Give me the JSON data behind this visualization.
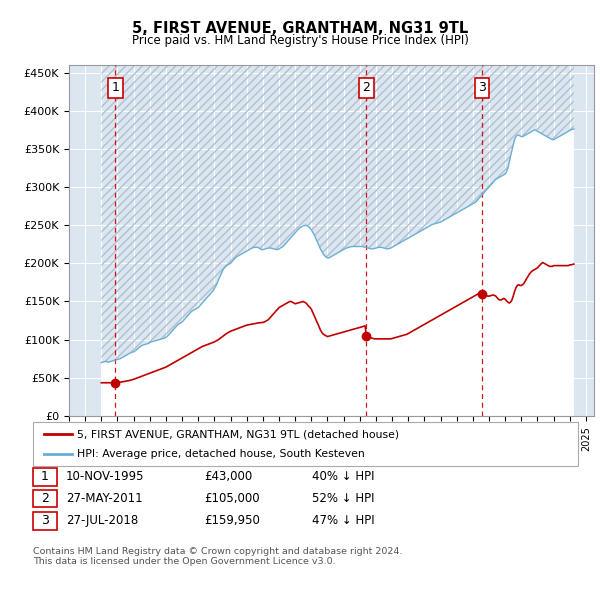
{
  "title": "5, FIRST AVENUE, GRANTHAM, NG31 9TL",
  "subtitle": "Price paid vs. HM Land Registry's House Price Index (HPI)",
  "ylim": [
    0,
    460000
  ],
  "xlim_start": 1993,
  "xlim_end": 2025.5,
  "hpi_color": "#6aaed6",
  "price_color": "#c00000",
  "dashed_line_color": "#cc0000",
  "background_color": "#dce6f1",
  "transactions": [
    {
      "num": 1,
      "date_x": 1995.86,
      "price": 43000
    },
    {
      "num": 2,
      "date_x": 2011.41,
      "price": 105000
    },
    {
      "num": 3,
      "date_x": 2018.57,
      "price": 159950
    }
  ],
  "legend_entries": [
    {
      "label": "5, FIRST AVENUE, GRANTHAM, NG31 9TL (detached house)",
      "color": "#c00000"
    },
    {
      "label": "HPI: Average price, detached house, South Kesteven",
      "color": "#6aaed6"
    }
  ],
  "table_rows": [
    {
      "num": 1,
      "date": "10-NOV-1995",
      "price": "£43,000",
      "hpi": "40% ↓ HPI"
    },
    {
      "num": 2,
      "date": "27-MAY-2011",
      "price": "£105,000",
      "hpi": "52% ↓ HPI"
    },
    {
      "num": 3,
      "date": "27-JUL-2018",
      "price": "£159,950",
      "hpi": "47% ↓ HPI"
    }
  ],
  "footnote": "Contains HM Land Registry data © Crown copyright and database right 2024.\nThis data is licensed under the Open Government Licence v3.0.",
  "hpi_data_x": [
    1995.0,
    1995.08,
    1995.17,
    1995.25,
    1995.33,
    1995.42,
    1995.5,
    1995.58,
    1995.67,
    1995.75,
    1995.83,
    1995.92,
    1996.0,
    1996.08,
    1996.17,
    1996.25,
    1996.33,
    1996.42,
    1996.5,
    1996.58,
    1996.67,
    1996.75,
    1996.83,
    1996.92,
    1997.0,
    1997.08,
    1997.17,
    1997.25,
    1997.33,
    1997.42,
    1997.5,
    1997.58,
    1997.67,
    1997.75,
    1997.83,
    1997.92,
    1998.0,
    1998.08,
    1998.17,
    1998.25,
    1998.33,
    1998.42,
    1998.5,
    1998.58,
    1998.67,
    1998.75,
    1998.83,
    1998.92,
    1999.0,
    1999.08,
    1999.17,
    1999.25,
    1999.33,
    1999.42,
    1999.5,
    1999.58,
    1999.67,
    1999.75,
    1999.83,
    1999.92,
    2000.0,
    2000.08,
    2000.17,
    2000.25,
    2000.33,
    2000.42,
    2000.5,
    2000.58,
    2000.67,
    2000.75,
    2000.83,
    2000.92,
    2001.0,
    2001.08,
    2001.17,
    2001.25,
    2001.33,
    2001.42,
    2001.5,
    2001.58,
    2001.67,
    2001.75,
    2001.83,
    2001.92,
    2002.0,
    2002.08,
    2002.17,
    2002.25,
    2002.33,
    2002.42,
    2002.5,
    2002.58,
    2002.67,
    2002.75,
    2002.83,
    2002.92,
    2003.0,
    2003.08,
    2003.17,
    2003.25,
    2003.33,
    2003.42,
    2003.5,
    2003.58,
    2003.67,
    2003.75,
    2003.83,
    2003.92,
    2004.0,
    2004.08,
    2004.17,
    2004.25,
    2004.33,
    2004.42,
    2004.5,
    2004.58,
    2004.67,
    2004.75,
    2004.83,
    2004.92,
    2005.0,
    2005.08,
    2005.17,
    2005.25,
    2005.33,
    2005.42,
    2005.5,
    2005.58,
    2005.67,
    2005.75,
    2005.83,
    2005.92,
    2006.0,
    2006.08,
    2006.17,
    2006.25,
    2006.33,
    2006.42,
    2006.5,
    2006.58,
    2006.67,
    2006.75,
    2006.83,
    2006.92,
    2007.0,
    2007.08,
    2007.17,
    2007.25,
    2007.33,
    2007.42,
    2007.5,
    2007.58,
    2007.67,
    2007.75,
    2007.83,
    2007.92,
    2008.0,
    2008.08,
    2008.17,
    2008.25,
    2008.33,
    2008.42,
    2008.5,
    2008.58,
    2008.67,
    2008.75,
    2008.83,
    2008.92,
    2009.0,
    2009.08,
    2009.17,
    2009.25,
    2009.33,
    2009.42,
    2009.5,
    2009.58,
    2009.67,
    2009.75,
    2009.83,
    2009.92,
    2010.0,
    2010.08,
    2010.17,
    2010.25,
    2010.33,
    2010.42,
    2010.5,
    2010.58,
    2010.67,
    2010.75,
    2010.83,
    2010.92,
    2011.0,
    2011.08,
    2011.17,
    2011.25,
    2011.33,
    2011.42,
    2011.5,
    2011.58,
    2011.67,
    2011.75,
    2011.83,
    2011.92,
    2012.0,
    2012.08,
    2012.17,
    2012.25,
    2012.33,
    2012.42,
    2012.5,
    2012.58,
    2012.67,
    2012.75,
    2012.83,
    2012.92,
    2013.0,
    2013.08,
    2013.17,
    2013.25,
    2013.33,
    2013.42,
    2013.5,
    2013.58,
    2013.67,
    2013.75,
    2013.83,
    2013.92,
    2014.0,
    2014.08,
    2014.17,
    2014.25,
    2014.33,
    2014.42,
    2014.5,
    2014.58,
    2014.67,
    2014.75,
    2014.83,
    2014.92,
    2015.0,
    2015.08,
    2015.17,
    2015.25,
    2015.33,
    2015.42,
    2015.5,
    2015.58,
    2015.67,
    2015.75,
    2015.83,
    2015.92,
    2016.0,
    2016.08,
    2016.17,
    2016.25,
    2016.33,
    2016.42,
    2016.5,
    2016.58,
    2016.67,
    2016.75,
    2016.83,
    2016.92,
    2017.0,
    2017.08,
    2017.17,
    2017.25,
    2017.33,
    2017.42,
    2017.5,
    2017.58,
    2017.67,
    2017.75,
    2017.83,
    2017.92,
    2018.0,
    2018.08,
    2018.17,
    2018.25,
    2018.33,
    2018.42,
    2018.5,
    2018.58,
    2018.67,
    2018.75,
    2018.83,
    2018.92,
    2019.0,
    2019.08,
    2019.17,
    2019.25,
    2019.33,
    2019.42,
    2019.5,
    2019.58,
    2019.67,
    2019.75,
    2019.83,
    2019.92,
    2020.0,
    2020.08,
    2020.17,
    2020.25,
    2020.33,
    2020.42,
    2020.5,
    2020.58,
    2020.67,
    2020.75,
    2020.83,
    2020.92,
    2021.0,
    2021.08,
    2021.17,
    2021.25,
    2021.33,
    2021.42,
    2021.5,
    2021.58,
    2021.67,
    2021.75,
    2021.83,
    2021.92,
    2022.0,
    2022.08,
    2022.17,
    2022.25,
    2022.33,
    2022.42,
    2022.5,
    2022.58,
    2022.67,
    2022.75,
    2022.83,
    2022.92,
    2023.0,
    2023.08,
    2023.17,
    2023.25,
    2023.33,
    2023.42,
    2023.5,
    2023.58,
    2023.67,
    2023.75,
    2023.83,
    2023.92,
    2024.0,
    2024.08,
    2024.17,
    2024.25
  ],
  "hpi_data_y": [
    70000,
    70500,
    71000,
    71500,
    71000,
    70500,
    71000,
    71500,
    72000,
    72500,
    73000,
    73500,
    74000,
    74500,
    75000,
    76000,
    77000,
    78000,
    79000,
    80000,
    81000,
    82000,
    83000,
    83500,
    84000,
    85000,
    86500,
    88000,
    89500,
    91000,
    92000,
    93000,
    93500,
    94000,
    94500,
    95000,
    96000,
    97000,
    97500,
    98000,
    98500,
    99000,
    99500,
    100000,
    100500,
    101000,
    101500,
    102000,
    103000,
    104500,
    106000,
    108000,
    110000,
    112000,
    114000,
    116000,
    118000,
    120000,
    121000,
    122000,
    123000,
    125000,
    127000,
    129000,
    131000,
    133000,
    135000,
    137000,
    138000,
    139000,
    140000,
    141000,
    142000,
    144000,
    146000,
    148000,
    150000,
    152000,
    154000,
    156000,
    158000,
    160000,
    162000,
    164000,
    167000,
    170000,
    174000,
    178000,
    182000,
    186000,
    190000,
    193000,
    195000,
    197000,
    198000,
    199000,
    200000,
    202000,
    204000,
    206000,
    208000,
    209000,
    210000,
    211000,
    212000,
    213000,
    214000,
    215000,
    216000,
    217000,
    218000,
    219000,
    220000,
    220500,
    221000,
    221000,
    221000,
    220000,
    219000,
    218000,
    218000,
    218500,
    219000,
    219500,
    220000,
    220000,
    220000,
    219500,
    219000,
    218500,
    218000,
    218000,
    219000,
    220000,
    221000,
    222000,
    224000,
    226000,
    228000,
    230000,
    232000,
    234000,
    236000,
    238000,
    240000,
    242000,
    244000,
    246000,
    247000,
    248000,
    249000,
    249500,
    250000,
    249000,
    248000,
    246000,
    244000,
    241000,
    238000,
    234000,
    230000,
    226000,
    222000,
    218000,
    215000,
    212000,
    210000,
    208000,
    207000,
    207000,
    208000,
    209000,
    210000,
    211000,
    212000,
    213000,
    214000,
    215000,
    216000,
    217000,
    218000,
    219000,
    220000,
    220500,
    221000,
    221500,
    222000,
    222000,
    222000,
    222000,
    222000,
    222000,
    222000,
    222000,
    222000,
    221500,
    221000,
    220500,
    220000,
    219500,
    219000,
    219000,
    219000,
    219500,
    220000,
    220500,
    221000,
    221000,
    221000,
    220500,
    220000,
    219500,
    219000,
    219000,
    219500,
    220000,
    221000,
    222000,
    223000,
    224000,
    225000,
    226000,
    227000,
    228000,
    229000,
    230000,
    231000,
    232000,
    233000,
    234000,
    235000,
    236000,
    237000,
    238000,
    239000,
    240000,
    241000,
    242000,
    243000,
    244000,
    245000,
    246000,
    247000,
    248000,
    249000,
    250000,
    251000,
    251500,
    252000,
    252500,
    253000,
    253500,
    254000,
    255000,
    256000,
    257000,
    258000,
    259000,
    260000,
    261000,
    262000,
    263000,
    264000,
    265000,
    266000,
    267000,
    268000,
    269000,
    270000,
    271000,
    272000,
    273000,
    274000,
    275000,
    276000,
    277000,
    278000,
    279000,
    280000,
    282000,
    284000,
    286000,
    288000,
    290000,
    292000,
    294000,
    296000,
    298000,
    300000,
    302000,
    304000,
    306000,
    308000,
    310000,
    311000,
    312000,
    313000,
    314000,
    315000,
    316000,
    317000,
    320000,
    325000,
    332000,
    340000,
    348000,
    355000,
    362000,
    366000,
    368000,
    368000,
    367000,
    366000,
    366000,
    367000,
    368000,
    369000,
    370000,
    371000,
    372000,
    373000,
    374000,
    375000,
    374000,
    373000,
    372000,
    371000,
    370000,
    369000,
    368000,
    367000,
    366000,
    365000,
    364000,
    363000,
    362000,
    362000,
    363000,
    364000,
    365000,
    366000,
    367000,
    368000,
    369000,
    370000,
    371000,
    372000,
    373000,
    374000,
    375000,
    375500,
    376000
  ],
  "price_data_x": [
    1995.0,
    1995.08,
    1995.17,
    1995.25,
    1995.33,
    1995.42,
    1995.5,
    1995.58,
    1995.67,
    1995.75,
    1995.83,
    1995.92,
    1996.0,
    1996.25,
    1996.5,
    1996.75,
    1997.0,
    1997.25,
    1997.5,
    1997.75,
    1998.0,
    1998.25,
    1998.5,
    1998.75,
    1999.0,
    1999.25,
    1999.5,
    1999.75,
    2000.0,
    2000.25,
    2000.5,
    2000.75,
    2001.0,
    2001.25,
    2001.5,
    2001.75,
    2002.0,
    2002.25,
    2002.5,
    2002.75,
    2003.0,
    2003.25,
    2003.5,
    2003.75,
    2004.0,
    2004.25,
    2004.5,
    2004.75,
    2005.0,
    2005.08,
    2005.17,
    2005.25,
    2005.33,
    2005.42,
    2005.5,
    2005.58,
    2005.67,
    2005.75,
    2005.83,
    2005.92,
    2006.0,
    2006.08,
    2006.17,
    2006.25,
    2006.33,
    2006.42,
    2006.5,
    2006.58,
    2006.67,
    2006.75,
    2006.83,
    2006.92,
    2007.0,
    2007.08,
    2007.17,
    2007.25,
    2007.33,
    2007.42,
    2007.5,
    2007.58,
    2007.67,
    2007.75,
    2007.83,
    2007.92,
    2008.0,
    2008.08,
    2008.17,
    2008.25,
    2008.33,
    2008.42,
    2008.5,
    2008.58,
    2008.67,
    2008.75,
    2008.83,
    2008.92,
    2009.0,
    2009.08,
    2009.17,
    2009.25,
    2009.33,
    2009.42,
    2009.5,
    2009.58,
    2009.67,
    2009.75,
    2009.83,
    2009.92,
    2010.0,
    2010.08,
    2010.17,
    2010.25,
    2010.33,
    2010.42,
    2010.5,
    2010.58,
    2010.67,
    2010.75,
    2010.83,
    2010.92,
    2011.0,
    2011.08,
    2011.17,
    2011.25,
    2011.33,
    2011.41,
    2011.5,
    2011.58,
    2011.67,
    2011.75,
    2011.83,
    2011.92,
    2012.0,
    2012.08,
    2012.17,
    2012.25,
    2012.33,
    2012.42,
    2012.5,
    2012.58,
    2012.67,
    2012.75,
    2012.83,
    2012.92,
    2013.0,
    2013.08,
    2013.17,
    2013.25,
    2013.33,
    2013.42,
    2013.5,
    2013.58,
    2013.67,
    2013.75,
    2013.83,
    2013.92,
    2014.0,
    2014.08,
    2014.17,
    2014.25,
    2014.33,
    2014.42,
    2014.5,
    2014.58,
    2014.67,
    2014.75,
    2014.83,
    2014.92,
    2015.0,
    2015.08,
    2015.17,
    2015.25,
    2015.33,
    2015.42,
    2015.5,
    2015.58,
    2015.67,
    2015.75,
    2015.83,
    2015.92,
    2016.0,
    2016.08,
    2016.17,
    2016.25,
    2016.33,
    2016.42,
    2016.5,
    2016.58,
    2016.67,
    2016.75,
    2016.83,
    2016.92,
    2017.0,
    2017.08,
    2017.17,
    2017.25,
    2017.33,
    2017.42,
    2017.5,
    2017.58,
    2017.67,
    2017.75,
    2017.83,
    2017.92,
    2018.0,
    2018.08,
    2018.17,
    2018.25,
    2018.33,
    2018.42,
    2018.57,
    2018.67,
    2018.75,
    2018.83,
    2018.92,
    2019.0,
    2019.08,
    2019.17,
    2019.25,
    2019.33,
    2019.42,
    2019.5,
    2019.58,
    2019.67,
    2019.75,
    2019.83,
    2019.92,
    2020.0,
    2020.08,
    2020.17,
    2020.25,
    2020.33,
    2020.42,
    2020.5,
    2020.58,
    2020.67,
    2020.75,
    2020.83,
    2020.92,
    2021.0,
    2021.08,
    2021.17,
    2021.25,
    2021.33,
    2021.42,
    2021.5,
    2021.58,
    2021.67,
    2021.75,
    2021.83,
    2021.92,
    2022.0,
    2022.08,
    2022.17,
    2022.25,
    2022.33,
    2022.42,
    2022.5,
    2022.58,
    2022.67,
    2022.75,
    2022.83,
    2022.92,
    2023.0,
    2023.08,
    2023.17,
    2023.25,
    2023.33,
    2023.42,
    2023.5,
    2023.58,
    2023.67,
    2023.75,
    2023.83,
    2023.92,
    2024.0,
    2024.08,
    2024.17,
    2024.25
  ],
  "price_data_y": [
    43500,
    43500,
    43500,
    43500,
    43500,
    43500,
    43500,
    43500,
    43500,
    43500,
    43500,
    43500,
    44000,
    44500,
    45500,
    46500,
    48000,
    50000,
    52000,
    54000,
    56000,
    58000,
    60000,
    62000,
    64000,
    67000,
    70000,
    73000,
    76000,
    79000,
    82000,
    85000,
    88000,
    91000,
    93000,
    95000,
    97000,
    100000,
    104000,
    108000,
    111000,
    113000,
    115000,
    117000,
    119000,
    120000,
    121000,
    122000,
    122500,
    123000,
    124000,
    125000,
    126000,
    128000,
    130000,
    132000,
    134000,
    136000,
    138000,
    140000,
    142000,
    143000,
    144000,
    145000,
    146000,
    147000,
    148000,
    149000,
    150000,
    150000,
    149000,
    148000,
    147000,
    147500,
    148000,
    148500,
    149000,
    149500,
    150000,
    149000,
    148000,
    146000,
    144000,
    142000,
    140000,
    136000,
    132000,
    128000,
    124000,
    120000,
    116000,
    112000,
    109000,
    107000,
    106000,
    105000,
    104000,
    104500,
    105000,
    105500,
    106000,
    106500,
    107000,
    107500,
    108000,
    108500,
    109000,
    109500,
    110000,
    110500,
    111000,
    111500,
    112000,
    112500,
    113000,
    113500,
    114000,
    114500,
    115000,
    115500,
    116000,
    116500,
    117000,
    117500,
    118000,
    105000,
    104000,
    103000,
    102500,
    102000,
    101500,
    101000,
    101000,
    101000,
    101000,
    101000,
    101000,
    101000,
    101000,
    101000,
    101000,
    101000,
    101000,
    101000,
    101500,
    102000,
    102500,
    103000,
    103500,
    104000,
    104500,
    105000,
    105500,
    106000,
    106500,
    107000,
    108000,
    109000,
    110000,
    111000,
    112000,
    113000,
    114000,
    115000,
    116000,
    117000,
    118000,
    119000,
    120000,
    121000,
    122000,
    123000,
    124000,
    125000,
    126000,
    127000,
    128000,
    129000,
    130000,
    131000,
    132000,
    133000,
    134000,
    135000,
    136000,
    137000,
    138000,
    139000,
    140000,
    141000,
    142000,
    143000,
    144000,
    145000,
    146000,
    147000,
    148000,
    149000,
    150000,
    151000,
    152000,
    153000,
    154000,
    155000,
    156000,
    157000,
    158000,
    159000,
    160000,
    161000,
    159950,
    160000,
    159000,
    158000,
    157000,
    157000,
    157500,
    158000,
    158500,
    158000,
    157000,
    155000,
    153000,
    152000,
    152000,
    153000,
    154000,
    153000,
    151000,
    149000,
    148000,
    149000,
    152000,
    157000,
    163000,
    168000,
    171000,
    172000,
    171000,
    171000,
    172000,
    174000,
    177000,
    180000,
    183000,
    186000,
    188000,
    190000,
    191000,
    192000,
    193000,
    194000,
    196000,
    198000,
    200000,
    201000,
    200000,
    199000,
    198000,
    197000,
    196000,
    196000,
    196000,
    197000,
    197000,
    197000,
    197000,
    197000,
    197000,
    197000,
    197000,
    197000,
    197000,
    197000,
    197000,
    198000,
    198000,
    198500,
    199000
  ]
}
